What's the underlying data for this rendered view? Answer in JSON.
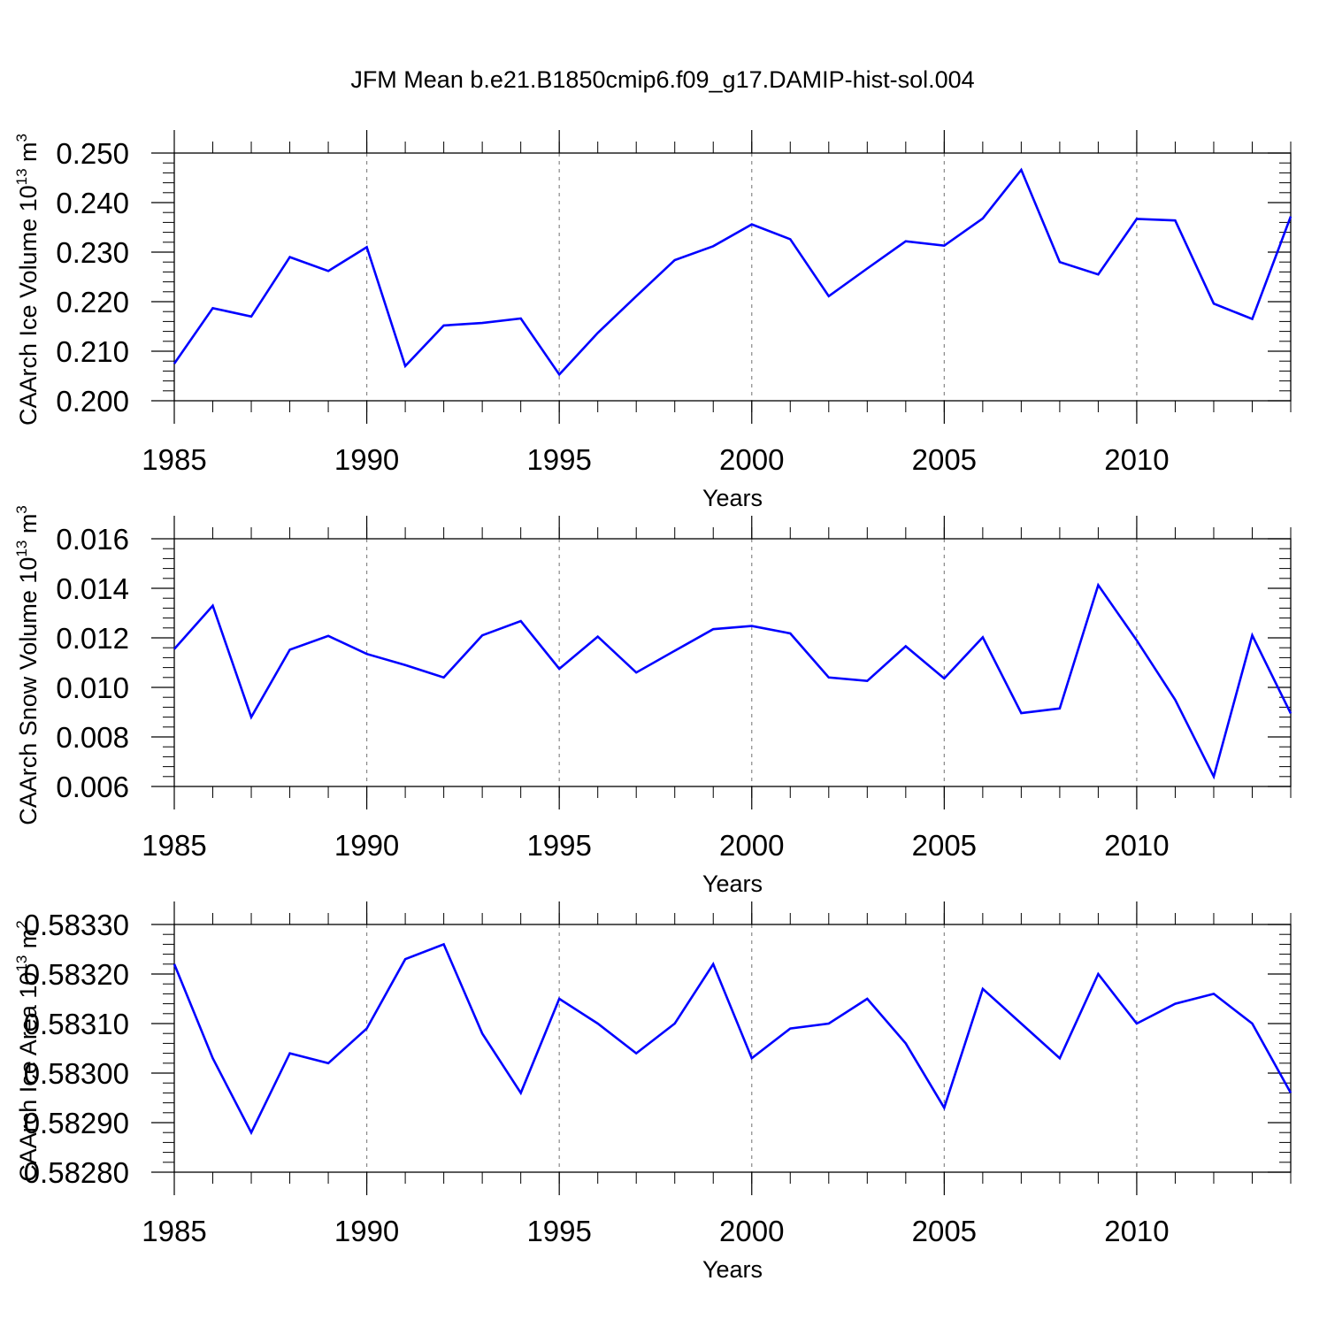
{
  "title": "JFM Mean b.e21.B1850cmip6.f09_g17.DAMIP-hist-sol.004",
  "line_color": "#0000ff",
  "chart_data": [
    {
      "type": "line",
      "ylabel_main": "CAArch Ice Volume 10",
      "ylabel_exp": "13",
      "ylabel_unit": " m",
      "ylabel_unit_exp": "3",
      "xlabel": "Years",
      "xlim": [
        1985,
        2014
      ],
      "ylim": [
        0.2,
        0.25
      ],
      "yticks": [
        0.2,
        0.21,
        0.22,
        0.23,
        0.24,
        0.25
      ],
      "ytick_labels": [
        "0.200",
        "0.210",
        "0.220",
        "0.230",
        "0.240",
        "0.250"
      ],
      "xticks": [
        1985,
        1990,
        1995,
        2000,
        2005,
        2010
      ],
      "xtick_labels": [
        "1985",
        "1990",
        "1995",
        "2000",
        "2005",
        "2010"
      ],
      "x": [
        1985,
        1986,
        1987,
        1988,
        1989,
        1990,
        1991,
        1992,
        1993,
        1994,
        1995,
        1996,
        1997,
        1998,
        1999,
        2000,
        2001,
        2002,
        2003,
        2004,
        2005,
        2006,
        2007,
        2008,
        2009,
        2010,
        2011,
        2012,
        2013,
        2014
      ],
      "values": [
        0.2075,
        0.2187,
        0.217,
        0.229,
        0.2262,
        0.231,
        0.207,
        0.2152,
        0.2157,
        0.2166,
        0.2053,
        0.2137,
        0.2211,
        0.2284,
        0.2312,
        0.2356,
        0.2326,
        0.2211,
        0.2267,
        0.2322,
        0.2313,
        0.2368,
        0.2466,
        0.228,
        0.2255,
        0.2367,
        0.2364,
        0.2196,
        0.2165,
        0.2372
      ]
    },
    {
      "type": "line",
      "ylabel_main": "CAArch Snow Volume 10",
      "ylabel_exp": "13",
      "ylabel_unit": " m",
      "ylabel_unit_exp": "3",
      "xlabel": "Years",
      "xlim": [
        1985,
        2014
      ],
      "ylim": [
        0.006,
        0.016
      ],
      "yticks": [
        0.006,
        0.008,
        0.01,
        0.012,
        0.014,
        0.016
      ],
      "ytick_labels": [
        "0.006",
        "0.008",
        "0.010",
        "0.012",
        "0.014",
        "0.016"
      ],
      "xticks": [
        1985,
        1990,
        1995,
        2000,
        2005,
        2010
      ],
      "xtick_labels": [
        "1985",
        "1990",
        "1995",
        "2000",
        "2005",
        "2010"
      ],
      "x": [
        1985,
        1986,
        1987,
        1988,
        1989,
        1990,
        1991,
        1992,
        1993,
        1994,
        1995,
        1996,
        1997,
        1998,
        1999,
        2000,
        2001,
        2002,
        2003,
        2004,
        2005,
        2006,
        2007,
        2008,
        2009,
        2010,
        2011,
        2012,
        2013,
        2014
      ],
      "values": [
        0.01155,
        0.0133,
        0.0088,
        0.01152,
        0.01208,
        0.01135,
        0.0109,
        0.0104,
        0.0121,
        0.01268,
        0.01075,
        0.01205,
        0.0106,
        0.01148,
        0.01235,
        0.01248,
        0.01218,
        0.0104,
        0.01026,
        0.01166,
        0.01036,
        0.01202,
        0.00896,
        0.00915,
        0.01413,
        0.0119,
        0.0095,
        0.0064,
        0.0121,
        0.00895
      ]
    },
    {
      "type": "line",
      "ylabel_main": "CAArch Ice Area 10",
      "ylabel_exp": "13",
      "ylabel_unit": " m",
      "ylabel_unit_exp": "2",
      "xlabel": "Years",
      "xlim": [
        1985,
        2014
      ],
      "ylim": [
        0.5828,
        0.5833
      ],
      "yticks": [
        0.5828,
        0.5829,
        0.583,
        0.5831,
        0.5832,
        0.5833
      ],
      "ytick_labels": [
        "0.58280",
        "0.58290",
        "0.58300",
        "0.58310",
        "0.58320",
        "0.58330"
      ],
      "xticks": [
        1985,
        1990,
        1995,
        2000,
        2005,
        2010
      ],
      "xtick_labels": [
        "1985",
        "1990",
        "1995",
        "2000",
        "2005",
        "2010"
      ],
      "x": [
        1985,
        1986,
        1987,
        1988,
        1989,
        1990,
        1991,
        1992,
        1993,
        1994,
        1995,
        1996,
        1997,
        1998,
        1999,
        2000,
        2001,
        2002,
        2003,
        2004,
        2005,
        2006,
        2007,
        2008,
        2009,
        2010,
        2011,
        2012,
        2013,
        2014
      ],
      "values": [
        0.58322,
        0.58303,
        0.58288,
        0.58304,
        0.58302,
        0.58309,
        0.58323,
        0.58326,
        0.58308,
        0.58296,
        0.58315,
        0.5831,
        0.58304,
        0.5831,
        0.58322,
        0.58303,
        0.58309,
        0.5831,
        0.58315,
        0.58306,
        0.58293,
        0.58317,
        0.5831,
        0.58303,
        0.5832,
        0.5831,
        0.58314,
        0.58316,
        0.5831,
        0.58296
      ]
    }
  ]
}
